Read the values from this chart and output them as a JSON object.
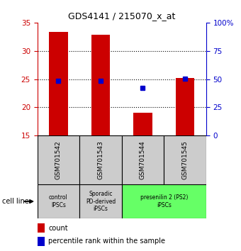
{
  "title": "GDS4141 / 215070_x_at",
  "samples": [
    "GSM701542",
    "GSM701543",
    "GSM701544",
    "GSM701545"
  ],
  "count_values": [
    33.3,
    32.9,
    19.0,
    25.2
  ],
  "percentile_values": [
    48.5,
    48.5,
    42.0,
    50.5
  ],
  "ylim_left": [
    15,
    35
  ],
  "ylim_right": [
    0,
    100
  ],
  "yticks_left": [
    15,
    20,
    25,
    30,
    35
  ],
  "yticks_right": [
    0,
    25,
    50,
    75,
    100
  ],
  "bar_color": "#cc0000",
  "dot_color": "#0000cc",
  "bar_width": 0.45,
  "groups": [
    {
      "label": "control\nIPSCs",
      "span": [
        0,
        1
      ],
      "color": "#cccccc"
    },
    {
      "label": "Sporadic\nPD-derived\niPSCs",
      "span": [
        1,
        2
      ],
      "color": "#cccccc"
    },
    {
      "label": "presenilin 2 (PS2)\niPSCs",
      "span": [
        2,
        4
      ],
      "color": "#66ff66"
    }
  ],
  "sample_box_color": "#cccccc",
  "cell_line_label": "cell line",
  "legend_count_label": "count",
  "legend_pct_label": "percentile rank within the sample",
  "background_color": "#ffffff",
  "left_axis_color": "#cc0000",
  "right_axis_color": "#0000cc",
  "grid_yticks": [
    20,
    25,
    30
  ]
}
